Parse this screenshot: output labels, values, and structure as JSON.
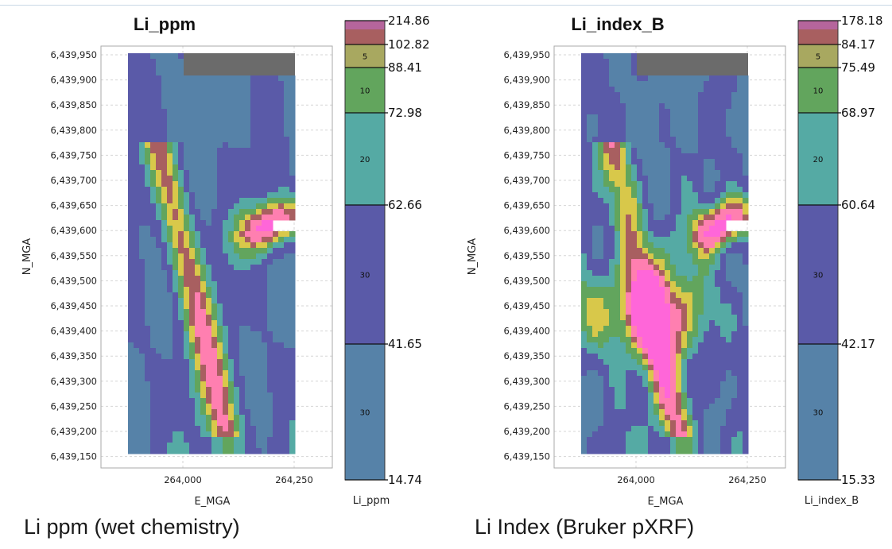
{
  "chart_data": [
    {
      "type": "heatmap",
      "title": "Li_ppm",
      "xlabel": "E_MGA",
      "ylabel": "N_MGA",
      "x_ticks": [
        "264,000",
        "264,250"
      ],
      "y_ticks": [
        "6,439,950",
        "6,439,900",
        "6,439,850",
        "6,439,800",
        "6,439,750",
        "6,439,700",
        "6,439,650",
        "6,439,600",
        "6,439,550",
        "6,439,500",
        "6,439,450",
        "6,439,400",
        "6,439,350",
        "6,439,300",
        "6,439,250",
        "6,439,200",
        "6,439,150"
      ],
      "grid": true,
      "colorbar": {
        "label": "Li_ppm",
        "breaks": [
          "214.86",
          "102.82",
          "88.41",
          "72.98",
          "62.66",
          "41.65",
          "14.74"
        ],
        "classes": [
          {
            "color": "#b5659c",
            "count": ""
          },
          {
            "color": "#a85f60",
            "count": ""
          },
          {
            "color": "#a8a860",
            "count": "5"
          },
          {
            "color": "#62a55d",
            "count": "10"
          },
          {
            "color": "#55aaa4",
            "count": "20"
          },
          {
            "color": "#5a5aa8",
            "count": "30"
          },
          {
            "color": "#5682a8",
            "count": "30"
          }
        ]
      }
    },
    {
      "type": "heatmap",
      "title": "Li_index_B",
      "xlabel": "E_MGA",
      "ylabel": "N_MGA",
      "x_ticks": [
        "264,000",
        "264,250"
      ],
      "y_ticks": [
        "6,439,950",
        "6,439,900",
        "6,439,850",
        "6,439,800",
        "6,439,750",
        "6,439,700",
        "6,439,650",
        "6,439,600",
        "6,439,550",
        "6,439,500",
        "6,439,450",
        "6,439,400",
        "6,439,350",
        "6,439,300",
        "6,439,250",
        "6,439,200",
        "6,439,150"
      ],
      "grid": true,
      "colorbar": {
        "label": "Li_index_B",
        "breaks": [
          "178.18",
          "84.17",
          "75.49",
          "68.97",
          "60.64",
          "42.17",
          "15.33"
        ],
        "classes": [
          {
            "color": "#b5659c",
            "count": ""
          },
          {
            "color": "#a85f60",
            "count": ""
          },
          {
            "color": "#a8a860",
            "count": "5"
          },
          {
            "color": "#62a55d",
            "count": "10"
          },
          {
            "color": "#55aaa4",
            "count": "20"
          },
          {
            "color": "#5a5aa8",
            "count": "30"
          },
          {
            "color": "#5682a8",
            "count": "30"
          }
        ]
      }
    }
  ],
  "captions": {
    "left": "Li ppm (wet chemistry)",
    "right": "Li Index (Bruker pXRF)"
  }
}
